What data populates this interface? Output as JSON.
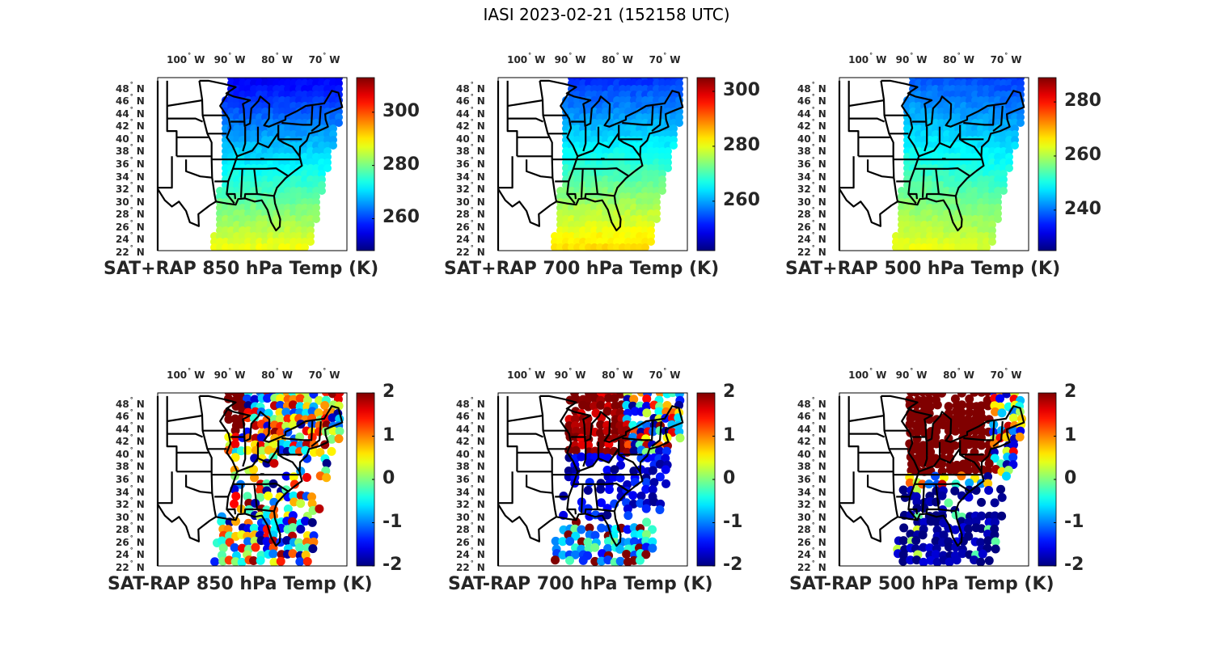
{
  "figure": {
    "title": "IASI 2023-02-21 (152158 UTC)"
  },
  "axes": {
    "lon_ticks": [
      "100",
      "90",
      "80",
      "70"
    ],
    "lon_hemisphere": "W",
    "lat_ticks": [
      "48",
      "46",
      "44",
      "42",
      "40",
      "38",
      "36",
      "34",
      "32",
      "30",
      "28",
      "26",
      "24",
      "22"
    ],
    "lat_hemisphere": "N",
    "lon_range": [
      -106,
      -66
    ],
    "lat_range": [
      22,
      49.5
    ]
  },
  "chart_data": [
    {
      "type": "heatmap",
      "title": "SAT+RAP 850 hPa Temp (K)",
      "colormap": "jet",
      "clim": [
        248,
        313
      ],
      "colorbar_ticks": [
        260,
        280,
        300
      ],
      "field": "absolute",
      "level_hPa": 850,
      "north_value": 255,
      "south_value": 288,
      "description": "Temperature increases from ~255 K over Great Lakes/Northeast to ~290 K over the Gulf"
    },
    {
      "type": "heatmap",
      "title": "SAT+RAP 700 hPa Temp (K)",
      "colormap": "jet",
      "clim": [
        242,
        305
      ],
      "colorbar_ticks": [
        260,
        280,
        300
      ],
      "field": "absolute",
      "level_hPa": 700,
      "north_value": 252,
      "south_value": 284,
      "description": "Temperature increases from ~252 K in north to ~284 K over Gulf"
    },
    {
      "type": "heatmap",
      "title": "SAT+RAP 500 hPa Temp (K)",
      "colormap": "jet",
      "clim": [
        225,
        289
      ],
      "colorbar_ticks": [
        240,
        260,
        280
      ],
      "field": "absolute",
      "level_hPa": 500,
      "north_value": 238,
      "south_value": 264,
      "description": "Temperature increases from ~238 K in northeast to ~264 K over Gulf"
    },
    {
      "type": "scatter",
      "title": "SAT-RAP 850 hPa Temp (K)",
      "colormap": "jet",
      "clim": [
        -2,
        2
      ],
      "colorbar_ticks": [
        2,
        1,
        0,
        -1,
        -2
      ],
      "field": "difference",
      "level_hPa": 850,
      "description": "Mixed differences; strongly positive (>2) over Upper Midwest, mixed over Gulf"
    },
    {
      "type": "scatter",
      "title": "SAT-RAP 700 hPa Temp (K)",
      "colormap": "jet",
      "clim": [
        -2,
        2
      ],
      "colorbar_ticks": [
        2,
        1,
        0,
        -1,
        -2
      ],
      "field": "difference",
      "level_hPa": 700,
      "description": "Positive over Michigan/Great Lakes, negative over Southeast and Gulf"
    },
    {
      "type": "scatter",
      "title": "SAT-RAP 500 hPa Temp (K)",
      "colormap": "jet",
      "clim": [
        -2,
        2
      ],
      "colorbar_ticks": [
        2,
        1,
        0,
        -1,
        -2
      ],
      "field": "difference",
      "level_hPa": 500,
      "description": "Strongly positive (>2) over Midwest/Great Lakes, strongly negative (<-2) over Gulf of Mexico"
    }
  ]
}
